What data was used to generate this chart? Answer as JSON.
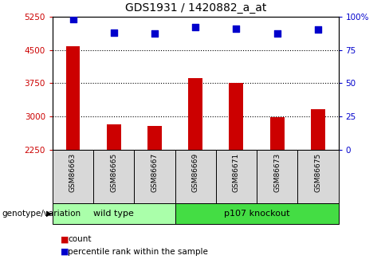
{
  "title": "GDS1931 / 1420882_a_at",
  "samples": [
    "GSM86663",
    "GSM86665",
    "GSM86667",
    "GSM86669",
    "GSM86671",
    "GSM86673",
    "GSM86675"
  ],
  "count_values": [
    4580,
    2820,
    2790,
    3870,
    3760,
    2990,
    3160
  ],
  "percentile_values": [
    98,
    88,
    87,
    92,
    91,
    87,
    90
  ],
  "ylim_left": [
    2250,
    5250
  ],
  "ylim_right": [
    0,
    100
  ],
  "yticks_left": [
    2250,
    3000,
    3750,
    4500,
    5250
  ],
  "yticks_right": [
    0,
    25,
    50,
    75,
    100
  ],
  "ytick_labels_right": [
    "0",
    "25",
    "50",
    "75",
    "100%"
  ],
  "bar_color": "#cc0000",
  "dot_color": "#0000cc",
  "grid_dotted": [
    3000,
    3750,
    4500
  ],
  "groups": [
    {
      "label": "wild type",
      "indices": [
        0,
        1,
        2
      ],
      "color": "#aaffaa"
    },
    {
      "label": "p107 knockout",
      "indices": [
        3,
        4,
        5,
        6
      ],
      "color": "#44dd44"
    }
  ],
  "group_label": "genotype/variation",
  "legend_count_label": "count",
  "legend_percentile_label": "percentile rank within the sample",
  "tick_color_left": "#cc0000",
  "tick_color_right": "#0000cc",
  "sample_box_color": "#d8d8d8",
  "bar_width": 0.35
}
